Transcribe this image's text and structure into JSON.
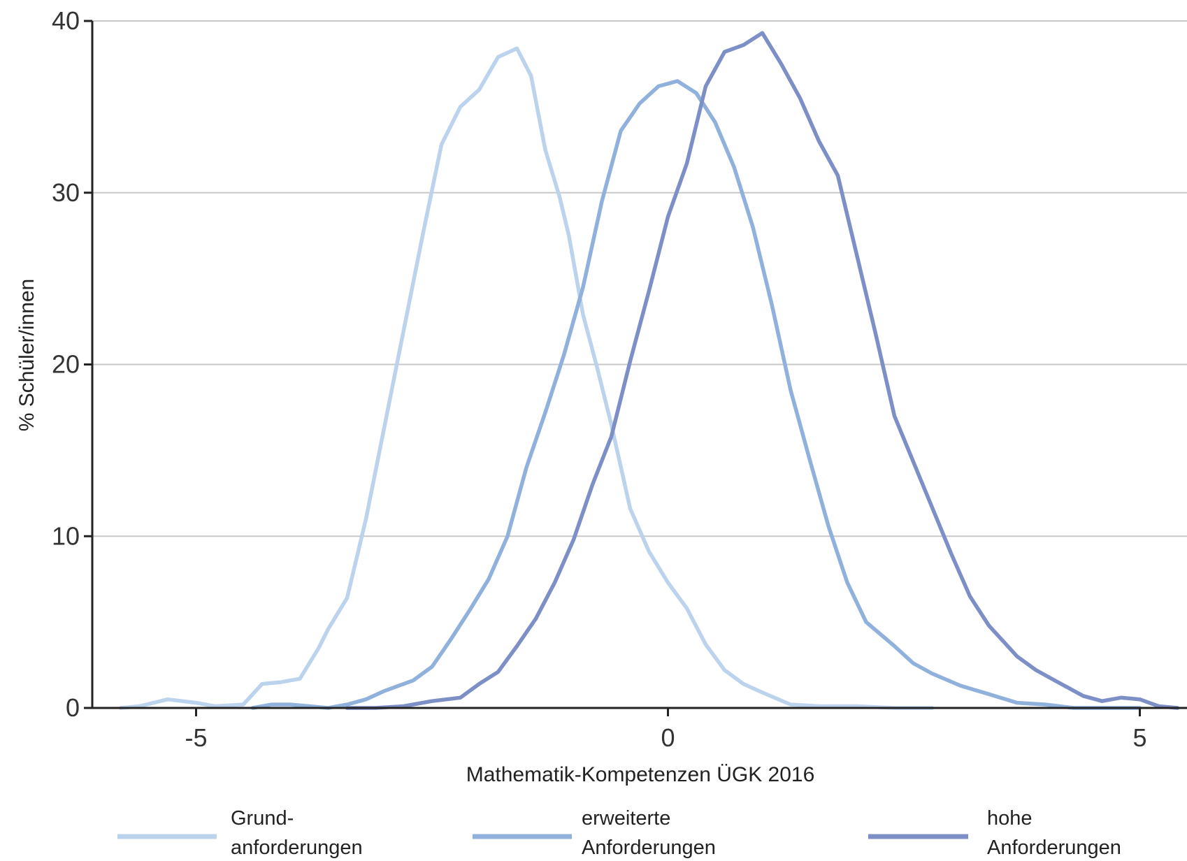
{
  "chart_data": {
    "type": "line",
    "title": "",
    "xlabel": "Mathematik-Kompetenzen ÜGK 2016",
    "ylabel": "% Schüler/innen",
    "xlim": [
      -6.1,
      5.5
    ],
    "ylim": [
      0,
      40
    ],
    "x_ticks": [
      -5,
      0,
      5
    ],
    "x_tick_labels": [
      "-5",
      "0",
      "5"
    ],
    "y_ticks": [
      0,
      10,
      20,
      30,
      40
    ],
    "y_tick_labels": [
      "0",
      "10",
      "20",
      "30",
      "40"
    ],
    "grid": "horizontal",
    "legend_position": "bottom",
    "series": [
      {
        "name": "Grund-anforderungen",
        "legend_lines": [
          "Grund-",
          "anforderungen"
        ],
        "color": "#bcd3ee",
        "x": [
          -5.8,
          -5.6,
          -5.3,
          -5.0,
          -4.8,
          -4.5,
          -4.3,
          -4.1,
          -3.9,
          -3.7,
          -3.6,
          -3.4,
          -3.2,
          -3.0,
          -2.8,
          -2.6,
          -2.4,
          -2.2,
          -2.0,
          -1.8,
          -1.6,
          -1.45,
          -1.3,
          -1.15,
          -1.05,
          -0.9,
          -0.75,
          -0.6,
          -0.4,
          -0.2,
          0.0,
          0.2,
          0.4,
          0.6,
          0.8,
          1.0,
          1.3,
          1.6,
          2.0,
          2.4,
          2.8
        ],
        "y": [
          0,
          0.1,
          0.5,
          0.3,
          0.1,
          0.2,
          1.4,
          1.5,
          1.7,
          3.5,
          4.6,
          6.4,
          11.0,
          16.5,
          22.0,
          27.5,
          32.8,
          35.0,
          36.0,
          37.9,
          38.4,
          36.8,
          32.5,
          29.8,
          27.5,
          22.9,
          19.8,
          16.5,
          11.6,
          9.1,
          7.3,
          5.8,
          3.7,
          2.2,
          1.4,
          0.9,
          0.2,
          0.1,
          0.1,
          0.0,
          0.0
        ]
      },
      {
        "name": "erweiterte Anforderungen",
        "legend_lines": [
          "erweiterte",
          "Anforderungen"
        ],
        "color": "#8fb1dc",
        "x": [
          -4.4,
          -4.2,
          -4.0,
          -3.8,
          -3.6,
          -3.4,
          -3.2,
          -3.0,
          -2.7,
          -2.5,
          -2.3,
          -2.1,
          -1.9,
          -1.7,
          -1.5,
          -1.3,
          -1.1,
          -0.9,
          -0.7,
          -0.5,
          -0.3,
          -0.1,
          0.1,
          0.3,
          0.5,
          0.7,
          0.9,
          1.1,
          1.3,
          1.5,
          1.7,
          1.9,
          2.1,
          2.4,
          2.6,
          2.8,
          3.1,
          3.4,
          3.7,
          4.0,
          4.3,
          4.6,
          5.0
        ],
        "y": [
          0,
          0.2,
          0.2,
          0.1,
          0.0,
          0.2,
          0.5,
          1.0,
          1.6,
          2.4,
          4.0,
          5.7,
          7.5,
          10.0,
          14.0,
          17.2,
          20.6,
          24.5,
          29.5,
          33.6,
          35.2,
          36.2,
          36.5,
          35.8,
          34.1,
          31.5,
          28.0,
          23.5,
          18.5,
          14.5,
          10.6,
          7.3,
          5.0,
          3.6,
          2.6,
          2.0,
          1.3,
          0.8,
          0.3,
          0.2,
          0.0,
          0.0,
          0.0
        ]
      },
      {
        "name": "hohe Anforderungen",
        "legend_lines": [
          "hohe",
          "Anforderungen"
        ],
        "color": "#7d8fc7",
        "x": [
          -3.4,
          -3.1,
          -2.8,
          -2.5,
          -2.2,
          -2.0,
          -1.8,
          -1.6,
          -1.4,
          -1.2,
          -1.0,
          -0.8,
          -0.6,
          -0.4,
          -0.2,
          0.0,
          0.2,
          0.4,
          0.6,
          0.8,
          1.0,
          1.2,
          1.4,
          1.6,
          1.8,
          2.0,
          2.2,
          2.4,
          2.7,
          3.0,
          3.2,
          3.4,
          3.7,
          3.9,
          4.2,
          4.4,
          4.6,
          4.8,
          5.0,
          5.2,
          5.4
        ],
        "y": [
          0,
          0.0,
          0.1,
          0.4,
          0.6,
          1.4,
          2.1,
          3.6,
          5.2,
          7.3,
          9.8,
          13.0,
          15.8,
          20.2,
          24.3,
          28.6,
          31.7,
          36.2,
          38.2,
          38.6,
          39.3,
          37.5,
          35.5,
          33.0,
          31.0,
          26.4,
          21.8,
          17.0,
          13.0,
          9.0,
          6.5,
          4.8,
          3.0,
          2.2,
          1.3,
          0.7,
          0.4,
          0.6,
          0.5,
          0.1,
          0.0
        ]
      }
    ]
  }
}
